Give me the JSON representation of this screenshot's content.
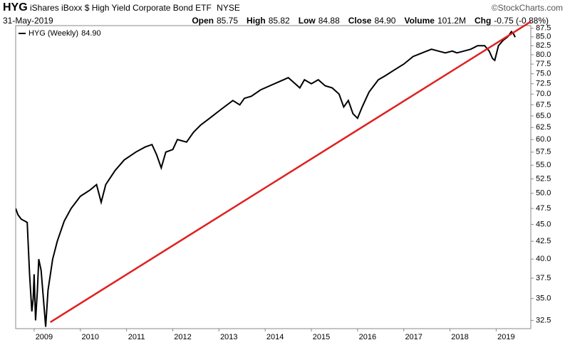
{
  "header": {
    "symbol": "HYG",
    "name": "iShares iBoxx $ High Yield Corporate Bond ETF",
    "exchange": "NYSE",
    "source": "©StockCharts.com",
    "date": "31-May-2019",
    "quote": [
      {
        "label": "Open",
        "value": "85.75"
      },
      {
        "label": "High",
        "value": "85.82"
      },
      {
        "label": "Low",
        "value": "84.88"
      },
      {
        "label": "Close",
        "value": "84.90"
      },
      {
        "label": "Volume",
        "value": "101.2M"
      },
      {
        "label": "Chg",
        "value": "-0.75 (-0.88%)"
      }
    ]
  },
  "chart_data": {
    "type": "line",
    "log_scale": true,
    "grid": false,
    "legend": "top-left",
    "x": [
      2008.6,
      2008.65,
      2008.72,
      2008.8,
      2008.85,
      2008.9,
      2008.95,
      2008.98,
      2009.0,
      2009.03,
      2009.07,
      2009.1,
      2009.15,
      2009.2,
      2009.25,
      2009.3,
      2009.4,
      2009.5,
      2009.65,
      2009.8,
      2010.0,
      2010.2,
      2010.35,
      2010.45,
      2010.55,
      2010.75,
      2010.95,
      2011.2,
      2011.4,
      2011.55,
      2011.65,
      2011.75,
      2011.85,
      2012.0,
      2012.1,
      2012.3,
      2012.45,
      2012.6,
      2012.8,
      2013.05,
      2013.3,
      2013.45,
      2013.55,
      2013.7,
      2013.9,
      2014.1,
      2014.3,
      2014.5,
      2014.6,
      2014.75,
      2014.85,
      2015.0,
      2015.15,
      2015.3,
      2015.45,
      2015.6,
      2015.7,
      2015.8,
      2015.9,
      2016.0,
      2016.1,
      2016.25,
      2016.45,
      2016.6,
      2016.8,
      2017.0,
      2017.2,
      2017.4,
      2017.6,
      2017.75,
      2017.9,
      2018.05,
      2018.15,
      2018.3,
      2018.45,
      2018.6,
      2018.75,
      2018.85,
      2018.92,
      2018.97,
      2019.05,
      2019.15,
      2019.25,
      2019.33,
      2019.38,
      2019.41
    ],
    "series": [
      {
        "name": "HYG (Weekly)",
        "color": "#000000",
        "last_value": {
          "value": 84.9,
          "label": "84.90"
        },
        "values": [
          47.5,
          46.5,
          45.8,
          45.5,
          45.3,
          38,
          33.5,
          35,
          38,
          32.5,
          36,
          40,
          38.5,
          35,
          31.8,
          36,
          40,
          42.5,
          45.5,
          47.5,
          49.5,
          50.5,
          51.5,
          48.5,
          51.5,
          54,
          56,
          57.5,
          58.5,
          59,
          57,
          54.5,
          57.5,
          58,
          60,
          59.5,
          61.5,
          63,
          64.5,
          66.5,
          68.5,
          67.5,
          69,
          69.5,
          71,
          72,
          73,
          74,
          73,
          71.5,
          73.5,
          72.5,
          73.5,
          72,
          71.5,
          70,
          67,
          68.5,
          65.5,
          64.5,
          67,
          70.5,
          73.5,
          74.5,
          76,
          77.5,
          79.5,
          80.5,
          81.5,
          81,
          80.5,
          81,
          80.5,
          81,
          81.5,
          82.5,
          82.5,
          81,
          79,
          78.5,
          82.5,
          84,
          85,
          86.5,
          85.8,
          84.9
        ]
      }
    ],
    "trendline": {
      "color": "#e02020",
      "x": [
        2009.35,
        2019.75
      ],
      "values": [
        32.3,
        89.5
      ]
    },
    "xlim": [
      2008.6,
      2019.75
    ],
    "xticks": [
      2009,
      2010,
      2011,
      2012,
      2013,
      2014,
      2015,
      2016,
      2017,
      2018,
      2019
    ],
    "ylim": [
      31.6,
      88.3
    ],
    "yticks": [
      32.5,
      {
        "value": 35,
        "label": "35.0"
      },
      37.5,
      {
        "value": 40,
        "label": "40.0"
      },
      42.5,
      {
        "value": 45,
        "label": "45.0"
      },
      47.5,
      {
        "value": 50,
        "label": "50.0"
      },
      52.5,
      {
        "value": 55,
        "label": "55.0"
      },
      57.5,
      {
        "value": 60,
        "label": "60.0"
      },
      62.5,
      {
        "value": 65,
        "label": "65.0"
      },
      67.5,
      {
        "value": 70,
        "label": "70.0"
      },
      72.5,
      {
        "value": 75,
        "label": "75.0"
      },
      77.5,
      {
        "value": 80,
        "label": "80.0"
      },
      82.5,
      {
        "value": 85,
        "label": "85.0"
      },
      87.5
    ]
  }
}
